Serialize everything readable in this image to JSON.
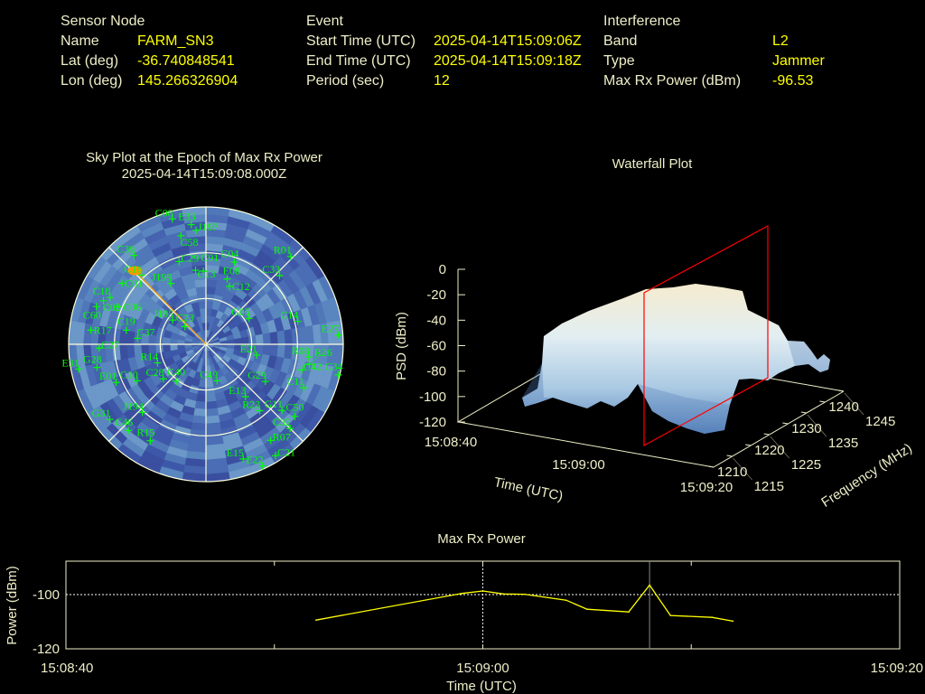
{
  "header": {
    "sensor": {
      "title": "Sensor Node",
      "rows": [
        {
          "label": "Name",
          "value": "FARM_SN3"
        },
        {
          "label": "Lat (deg)",
          "value": "-36.740848541"
        },
        {
          "label": "Lon (deg)",
          "value": "145.266326904"
        }
      ]
    },
    "event": {
      "title": "Event",
      "rows": [
        {
          "label": "Start Time (UTC)",
          "value": "2025-04-14T15:09:06Z"
        },
        {
          "label": "End Time (UTC)",
          "value": "2025-04-14T15:09:18Z"
        },
        {
          "label": "Period (sec)",
          "value": "12"
        }
      ]
    },
    "interference": {
      "title": "Interference",
      "rows": [
        {
          "label": "Band",
          "value": "L2"
        },
        {
          "label": "Type",
          "value": "Jammer"
        },
        {
          "label": "Max Rx Power (dBm)",
          "value": "-96.53"
        }
      ]
    }
  },
  "sky_plot": {
    "title": "Sky Plot at the Epoch of Max Rx Power",
    "epoch": "2025-04-14T15:09:08.000Z",
    "colors": {
      "satellite": "#00ff00",
      "jammer": "#ff9900",
      "grid": "#ffffdd"
    },
    "jammer": {
      "az": 316,
      "el": 23
    },
    "satellites": [
      {
        "id": "C08",
        "az": 345,
        "el": 5
      },
      {
        "id": "E33",
        "az": 353,
        "el": 11
      },
      {
        "id": "J197",
        "az": 355,
        "el": 15
      },
      {
        "id": "C58",
        "az": 347,
        "el": 17
      },
      {
        "id": "C39",
        "az": 321,
        "el": 15
      },
      {
        "id": "C16",
        "az": 317,
        "el": 28
      },
      {
        "id": "C01",
        "az": 306,
        "el": 22
      },
      {
        "id": "C18",
        "az": 296,
        "el": 20
      },
      {
        "id": "C02",
        "az": 293,
        "el": 17
      },
      {
        "id": "C06",
        "az": 293,
        "el": 27
      },
      {
        "id": "C60",
        "az": 289,
        "el": 14
      },
      {
        "id": "R17",
        "az": 277,
        "el": 14
      },
      {
        "id": "C27",
        "az": 268,
        "el": 20
      },
      {
        "id": "E31",
        "az": 259,
        "el": 5
      },
      {
        "id": "G28",
        "az": 258,
        "el": 17
      },
      {
        "id": "E01",
        "az": 247,
        "el": 26
      },
      {
        "id": "C19",
        "az": 280,
        "el": 37
      },
      {
        "id": "C37",
        "az": 275,
        "el": 45
      },
      {
        "id": "C10",
        "az": 242,
        "el": 39
      },
      {
        "id": "J194",
        "az": 223,
        "el": 29
      },
      {
        "id": "G31",
        "az": 232,
        "el": 10
      },
      {
        "id": "C46",
        "az": 222,
        "el": 14
      },
      {
        "id": "R15",
        "az": 210,
        "el": 17
      },
      {
        "id": "R14",
        "az": 249,
        "el": 56
      },
      {
        "id": "C28",
        "az": 231,
        "el": 54
      },
      {
        "id": "C40",
        "az": 219,
        "el": 59
      },
      {
        "id": "J199",
        "az": 330,
        "el": 44
      },
      {
        "id": "J195",
        "az": 306,
        "el": 63
      },
      {
        "id": "C23",
        "az": 310,
        "el": 72
      },
      {
        "id": "C29",
        "az": 342,
        "el": 33
      },
      {
        "id": "C13",
        "az": 352,
        "el": 41
      },
      {
        "id": "C91",
        "az": 358,
        "el": 42
      },
      {
        "id": "C04",
        "az": 19,
        "el": 33
      },
      {
        "id": "E08",
        "az": 18,
        "el": 45
      },
      {
        "id": "C12",
        "az": 22,
        "el": 49
      },
      {
        "id": "R01",
        "az": 44,
        "el": 10
      },
      {
        "id": "C33",
        "az": 47,
        "el": 24
      },
      {
        "id": "G05",
        "az": 59,
        "el": 57
      },
      {
        "id": "C14",
        "az": 76,
        "el": 28
      },
      {
        "id": "E27",
        "az": 86,
        "el": 3
      },
      {
        "id": "E21",
        "az": 102,
        "el": 56
      },
      {
        "id": "R08",
        "az": 97,
        "el": 22
      },
      {
        "id": "C42",
        "az": 105,
        "el": 25
      },
      {
        "id": "R26",
        "az": 101,
        "el": 21
      },
      {
        "id": "C34",
        "az": 103,
        "el": 1
      },
      {
        "id": "C11",
        "az": 114,
        "el": 20
      },
      {
        "id": "C49",
        "az": 163,
        "el": 65
      },
      {
        "id": "G29",
        "az": 122,
        "el": 44
      },
      {
        "id": "E13",
        "az": 143,
        "el": 47
      },
      {
        "id": "R23",
        "az": 141,
        "el": 34
      },
      {
        "id": "G11",
        "az": 131,
        "el": 24
      },
      {
        "id": "C50",
        "az": 129,
        "el": 15
      },
      {
        "id": "C32",
        "az": 135,
        "el": 12
      },
      {
        "id": "R07",
        "az": 146,
        "el": 14
      },
      {
        "id": "C21",
        "az": 148,
        "el": 4
      },
      {
        "id": "E15",
        "az": 162,
        "el": 11
      },
      {
        "id": "E22",
        "az": 155,
        "el": 2
      }
    ]
  },
  "waterfall": {
    "title": "Waterfall Plot",
    "zlabel": "PSD (dBm)",
    "xlabel": "Time (UTC)",
    "ylabel": "Frequency (MHz)",
    "z_ticks": [
      "0",
      "-20",
      "-40",
      "-60",
      "-80",
      "-100",
      "-120"
    ],
    "time_ticks": [
      "15:08:40",
      "15:09:00",
      "15:09:20"
    ],
    "freq_ticks": [
      "1210",
      "1215",
      "1220",
      "1225",
      "1230",
      "1235",
      "1240",
      "1245"
    ],
    "marker_time_fraction": 0.7,
    "colors": {
      "marker": "#ff0000",
      "surface_high": "#f6eccf",
      "surface_low": "#5a84bd"
    }
  },
  "chart_data": {
    "type": "line",
    "title": "Max Rx Power",
    "xlabel": "Time (UTC)",
    "ylabel": "Power (dBm)",
    "x_ticks": [
      "15:08:40",
      "15:09:00",
      "15:09:20"
    ],
    "y_ticks": [
      "-100",
      "-120"
    ],
    "xlim": [
      "15:08:40",
      "15:09:20"
    ],
    "ylim": [
      -120,
      -87.7
    ],
    "x": [
      "15:08:52",
      "15:08:59",
      "15:09:00",
      "15:09:01",
      "15:09:02",
      "15:09:04",
      "15:09:05",
      "15:09:07",
      "15:09:08",
      "15:09:09",
      "15:09:11",
      "15:09:12"
    ],
    "values": [
      -109.4,
      -99.6,
      -98.7,
      -99.8,
      -99.9,
      -102.1,
      -105.4,
      -106.4,
      -96.53,
      -107.7,
      -108.4,
      -109.8
    ],
    "marker_time": "15:09:08",
    "color": "#ffff00"
  }
}
